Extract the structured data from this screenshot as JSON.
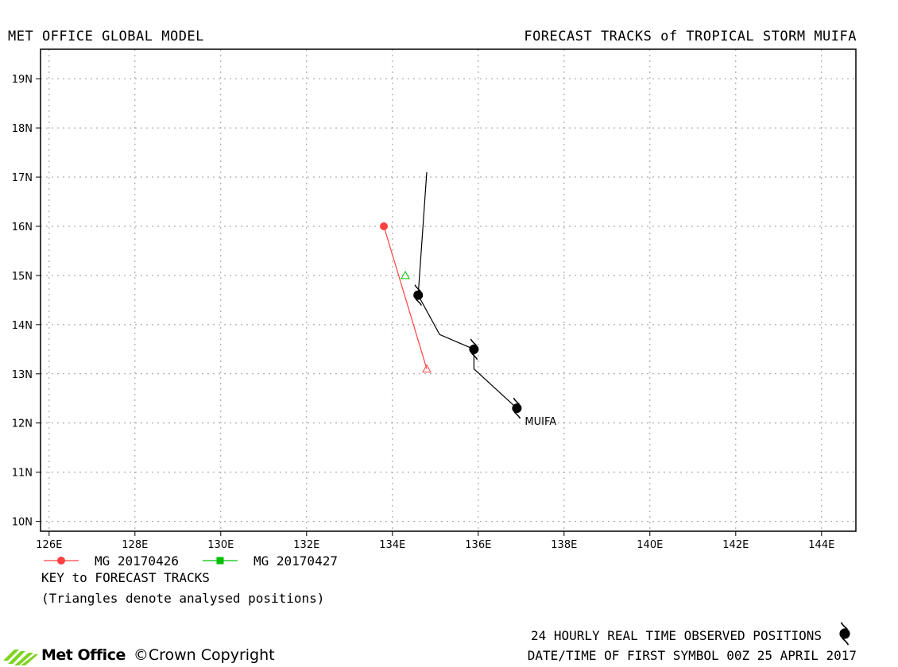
{
  "header": {
    "left_title": "MET OFFICE GLOBAL MODEL",
    "right_title": "FORECAST TRACKS of TROPICAL STORM MUIFA"
  },
  "map": {
    "lon_range": [
      125.8,
      144.8
    ],
    "lat_range": [
      9.8,
      19.6
    ],
    "lon_ticks": [
      {
        "value": 126,
        "label": "126E"
      },
      {
        "value": 128,
        "label": "128E"
      },
      {
        "value": 130,
        "label": "130E"
      },
      {
        "value": 132,
        "label": "132E"
      },
      {
        "value": 134,
        "label": "134E"
      },
      {
        "value": 136,
        "label": "136E"
      },
      {
        "value": 138,
        "label": "138E"
      },
      {
        "value": 140,
        "label": "140E"
      },
      {
        "value": 142,
        "label": "142E"
      },
      {
        "value": 144,
        "label": "144E"
      }
    ],
    "lat_ticks": [
      {
        "value": 10,
        "label": "10N"
      },
      {
        "value": 11,
        "label": "11N"
      },
      {
        "value": 12,
        "label": "12N"
      },
      {
        "value": 13,
        "label": "13N"
      },
      {
        "value": 14,
        "label": "14N"
      },
      {
        "value": 15,
        "label": "15N"
      },
      {
        "value": 16,
        "label": "16N"
      },
      {
        "value": 17,
        "label": "17N"
      },
      {
        "value": 18,
        "label": "18N"
      },
      {
        "value": 19,
        "label": "19N"
      }
    ],
    "grid": true,
    "storm_label": "MUIFA",
    "observed_track": [
      {
        "lon": 134.8,
        "lat": 17.1
      },
      {
        "lon": 134.6,
        "lat": 14.6
      },
      {
        "lon": 135.1,
        "lat": 13.8
      },
      {
        "lon": 135.9,
        "lat": 13.5
      },
      {
        "lon": 135.9,
        "lat": 13.1
      },
      {
        "lon": 136.9,
        "lat": 12.3
      }
    ],
    "observed_symbols": [
      {
        "lon": 134.6,
        "lat": 14.6
      },
      {
        "lon": 135.9,
        "lat": 13.5
      },
      {
        "lon": 136.9,
        "lat": 12.3
      }
    ],
    "forecast_tracks": [
      {
        "name": "MG 20170426",
        "color": "#ff4040",
        "marker": "circle",
        "analysed": {
          "lon": 134.8,
          "lat": 13.1
        },
        "points": [
          {
            "lon": 134.8,
            "lat": 13.1
          },
          {
            "lon": 133.8,
            "lat": 16.0
          }
        ]
      },
      {
        "name": "MG 20170427",
        "color": "#00c000",
        "marker": "square",
        "analysed": {
          "lon": 134.3,
          "lat": 15.0
        },
        "points": [
          {
            "lon": 134.3,
            "lat": 15.0
          }
        ]
      }
    ]
  },
  "key": {
    "title": "KEY to FORECAST TRACKS",
    "note": "(Triangles denote analysed positions)"
  },
  "footer": {
    "observed_positions": "24 HOURLY REAL TIME OBSERVED POSITIONS",
    "date_time": "DATE/TIME OF FIRST SYMBOL 00Z 25 APRIL 2017",
    "logo_text": "Met Office",
    "copyright": "©Crown Copyright"
  },
  "icons": [
    "tropical-storm-symbol-icon",
    "met-office-logo-icon"
  ]
}
